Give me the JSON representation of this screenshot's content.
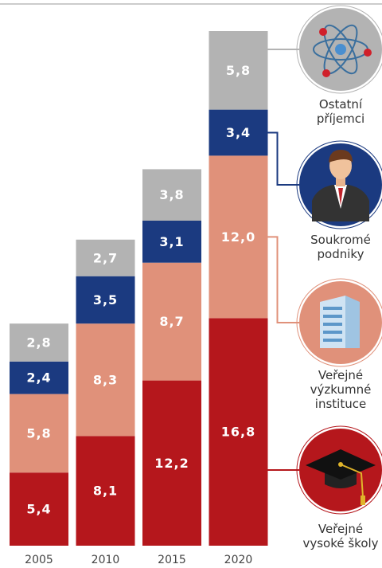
{
  "chart_data": {
    "type": "stacked-bar",
    "categories": [
      "2005",
      "2010",
      "2015",
      "2020"
    ],
    "series": [
      {
        "name": "Veřejné vysoké školy",
        "color": "#b5171c",
        "values": [
          5.4,
          8.1,
          12.2,
          16.8
        ],
        "value_labels": [
          "5,4",
          "8,1",
          "12,2",
          "16,8"
        ]
      },
      {
        "name": "Veřejné výzkumné instituce",
        "color": "#e0917a",
        "values": [
          5.8,
          8.3,
          8.7,
          12.0
        ],
        "value_labels": [
          "5,8",
          "8,3",
          "8,7",
          "12,0"
        ]
      },
      {
        "name": "Soukromé podniky",
        "color": "#1b3a80",
        "values": [
          2.4,
          3.5,
          3.1,
          3.4
        ],
        "value_labels": [
          "2,4",
          "3,5",
          "3,1",
          "3,4"
        ]
      },
      {
        "name": "Ostatní příjemci",
        "color": "#b3b3b3",
        "values": [
          2.8,
          2.7,
          3.8,
          5.8
        ],
        "value_labels": [
          "2,8",
          "2,7",
          "3,8",
          "5,8"
        ]
      }
    ]
  }
}
